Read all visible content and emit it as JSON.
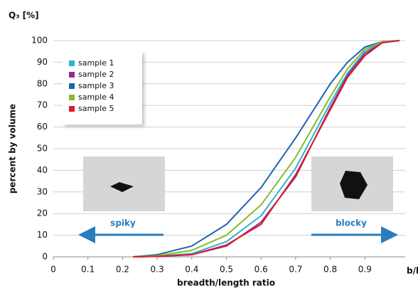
{
  "chart_data": {
    "type": "line",
    "title": "Q₃ [%]",
    "y_label": "percent by volume",
    "x_label": "breadth/length ratio",
    "x_unit": "b/l",
    "annotations": [
      "spiky",
      "blocky"
    ],
    "x": [
      0.23,
      0.3,
      0.4,
      0.5,
      0.6,
      0.7,
      0.8,
      0.85,
      0.9,
      0.95,
      1.0
    ],
    "series": [
      {
        "name": "sample 1",
        "color": "#2bb3d5",
        "values": [
          0,
          0.3,
          1.5,
          7,
          19,
          41,
          71,
          85,
          95,
          99.3,
          100
        ]
      },
      {
        "name": "sample 2",
        "color": "#9a2a88",
        "values": [
          0,
          0.2,
          1,
          5,
          16,
          37,
          69,
          84,
          94,
          99,
          100
        ]
      },
      {
        "name": "sample 3",
        "color": "#1f63b0",
        "values": [
          0,
          1,
          5,
          15,
          32,
          55,
          80,
          90,
          97,
          99.5,
          100
        ]
      },
      {
        "name": "sample 4",
        "color": "#86bb2a",
        "values": [
          0,
          0.5,
          3,
          10,
          24,
          46,
          74,
          87,
          96,
          99.4,
          100
        ]
      },
      {
        "name": "sample 5",
        "color": "#d8202a",
        "values": [
          0,
          0.2,
          1,
          5.5,
          15,
          38,
          68,
          83,
          93,
          99,
          100
        ]
      }
    ],
    "xlim": [
      0,
      1.0
    ],
    "ylim": [
      0,
      100
    ],
    "xticks": [
      0,
      0.1,
      0.2,
      0.3,
      0.4,
      0.5,
      0.6,
      0.7,
      0.8,
      0.9
    ],
    "yticks": [
      0,
      10,
      20,
      30,
      40,
      50,
      60,
      70,
      80,
      90,
      100
    ],
    "grid": true
  }
}
